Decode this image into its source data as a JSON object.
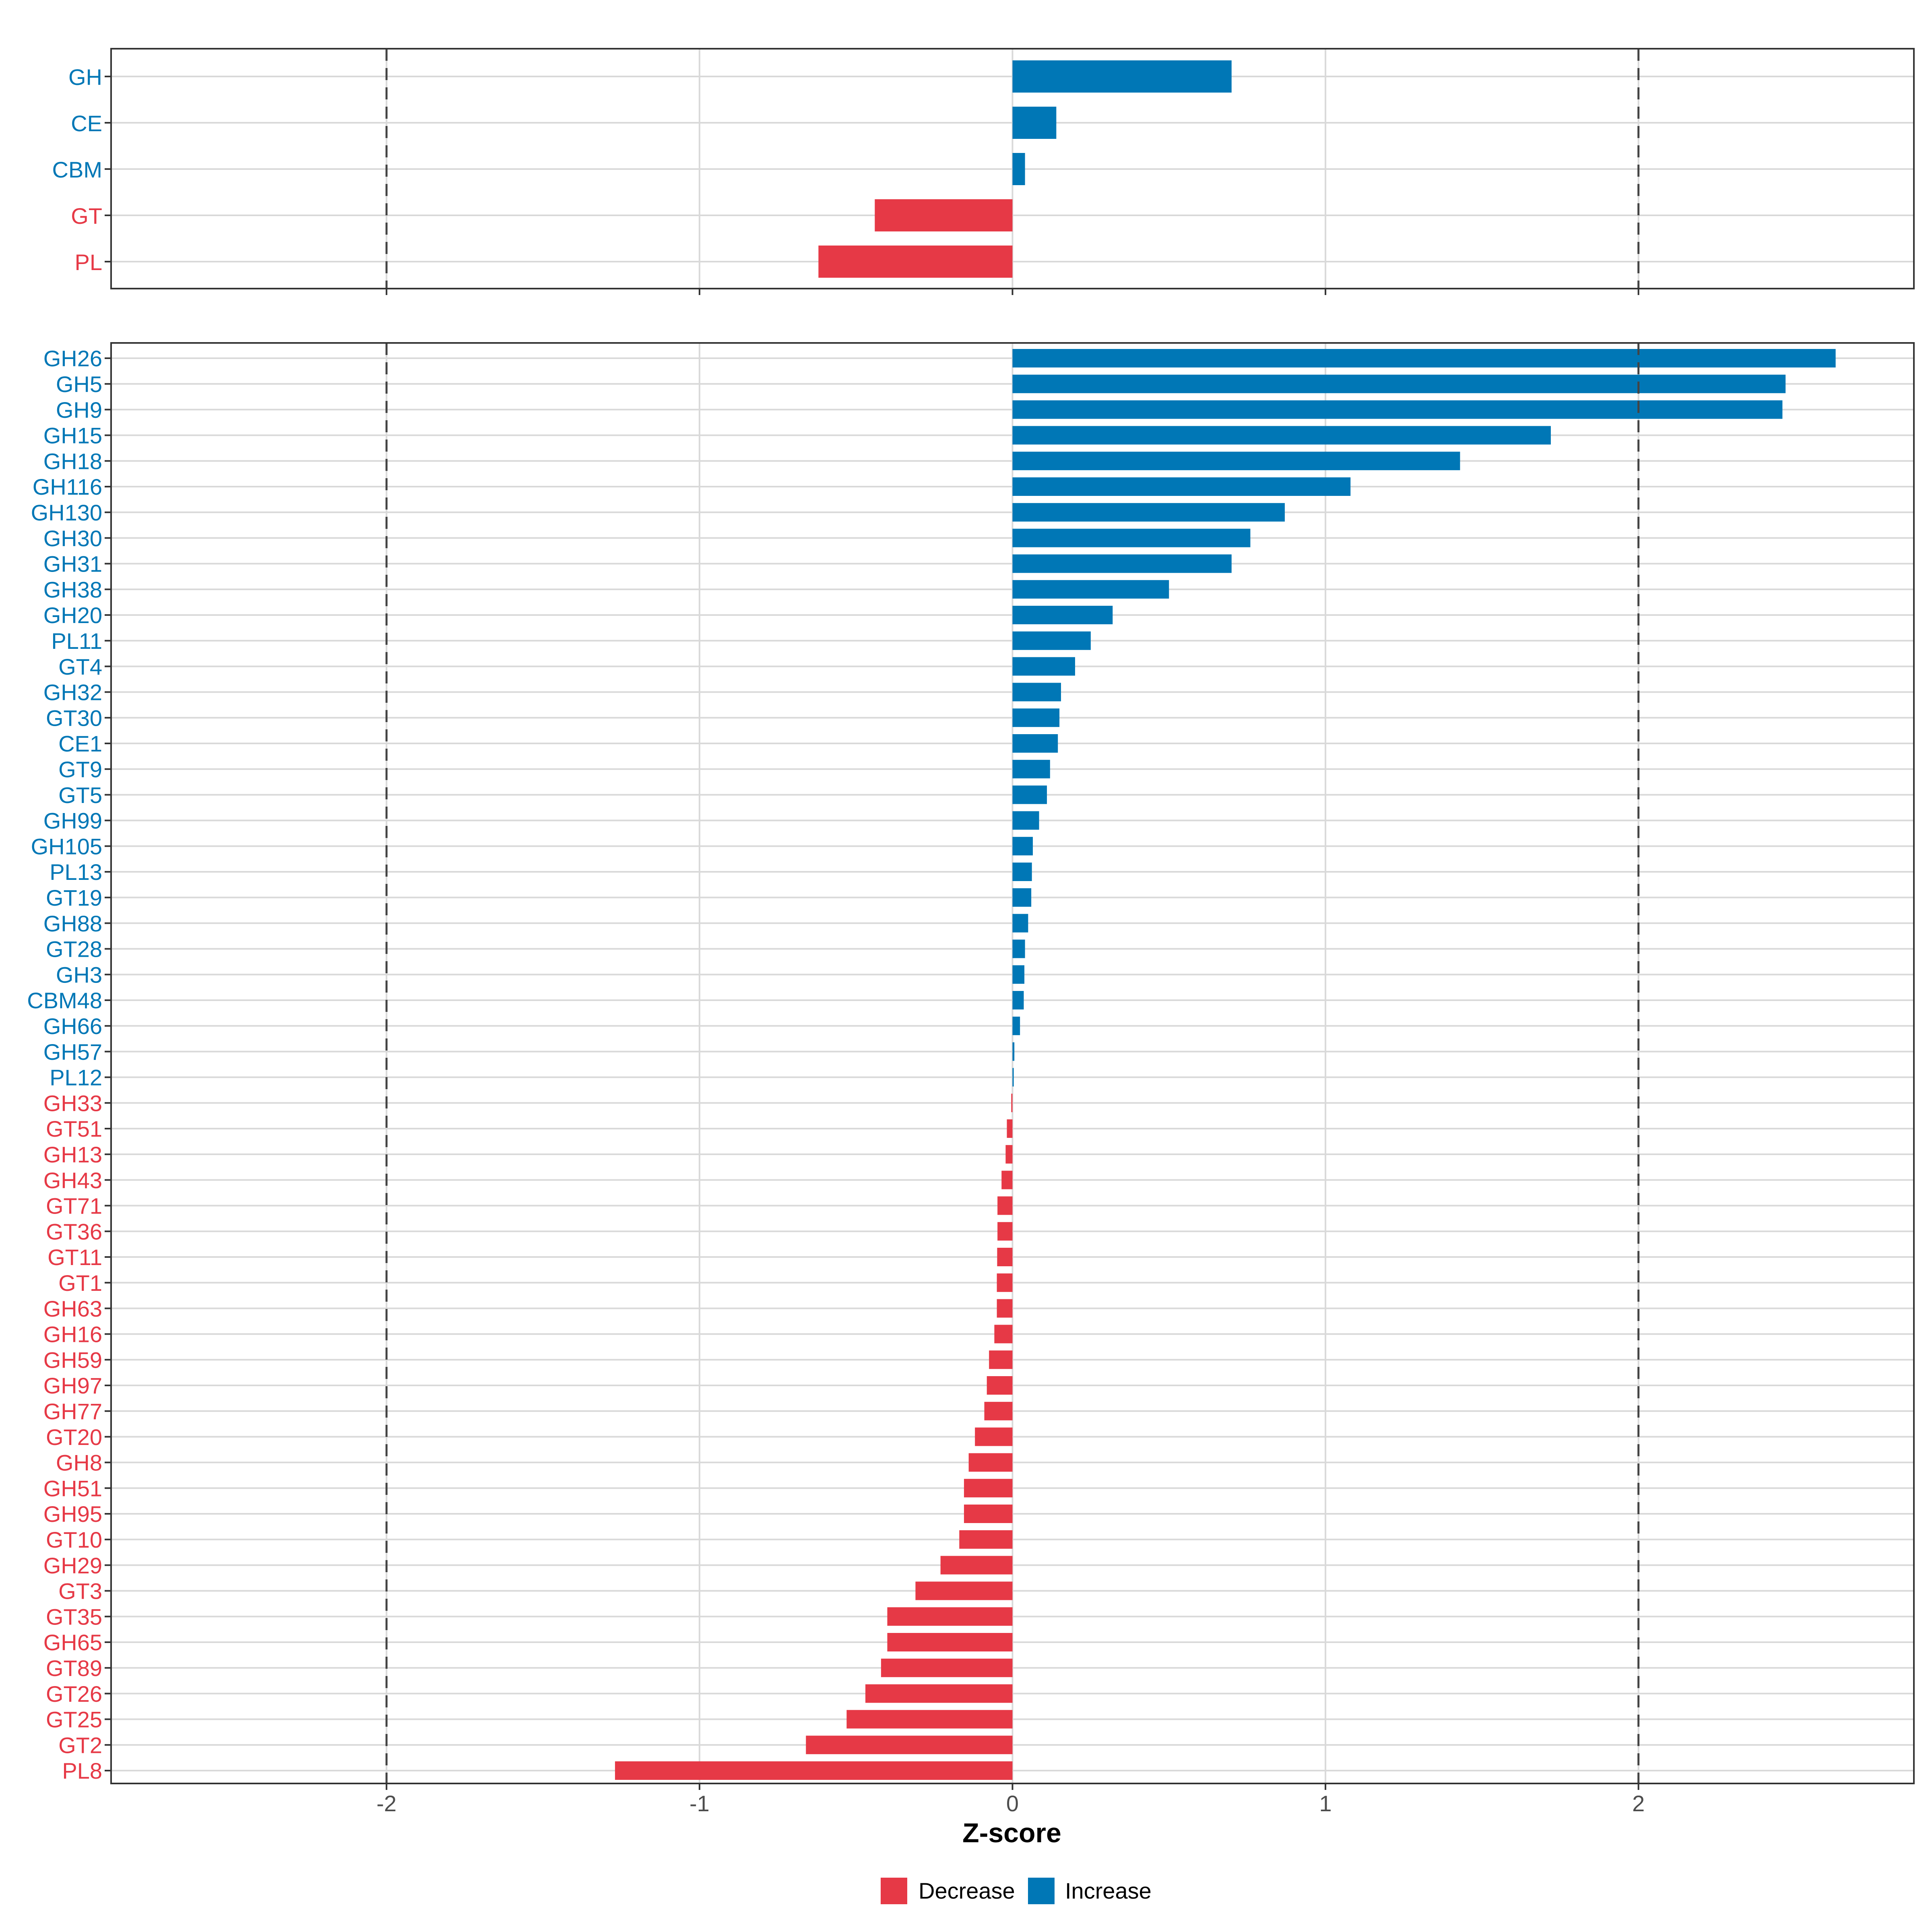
{
  "chart_data": [
    {
      "type": "bar",
      "orientation": "horizontal",
      "panel": "top",
      "categories": [
        "GH",
        "CE",
        "CBM",
        "GT",
        "PL"
      ],
      "values": [
        0.7,
        0.14,
        0.04,
        -0.44,
        -0.62
      ],
      "xlim": [
        -2.88,
        2.88
      ],
      "reference_lines": [
        -2,
        2
      ]
    },
    {
      "type": "bar",
      "orientation": "horizontal",
      "panel": "bottom",
      "categories": [
        "GH26",
        "GH5",
        "GH9",
        "GH15",
        "GH18",
        "GH116",
        "GH130",
        "GH30",
        "GH31",
        "GH38",
        "GH20",
        "PL11",
        "GT4",
        "GH32",
        "GT30",
        "CE1",
        "GT9",
        "GT5",
        "GH99",
        "GH105",
        "PL13",
        "GT19",
        "GH88",
        "GT28",
        "GH3",
        "CBM48",
        "GH66",
        "GH57",
        "PL12",
        "GH33",
        "GT51",
        "GH13",
        "GH43",
        "GT71",
        "GT36",
        "GT11",
        "GT1",
        "GH63",
        "GH16",
        "GH59",
        "GH97",
        "GH77",
        "GT20",
        "GH8",
        "GH51",
        "GH95",
        "GT10",
        "GH29",
        "GT3",
        "GT35",
        "GH65",
        "GT89",
        "GT26",
        "GT25",
        "GT2",
        "PL8"
      ],
      "values": [
        2.63,
        2.47,
        2.46,
        1.72,
        1.43,
        1.08,
        0.87,
        0.76,
        0.7,
        0.5,
        0.32,
        0.25,
        0.2,
        0.155,
        0.15,
        0.145,
        0.12,
        0.11,
        0.085,
        0.065,
        0.062,
        0.06,
        0.05,
        0.04,
        0.038,
        0.036,
        0.024,
        0.006,
        0.004,
        -0.004,
        -0.018,
        -0.022,
        -0.035,
        -0.048,
        -0.048,
        -0.049,
        -0.05,
        -0.05,
        -0.058,
        -0.075,
        -0.082,
        -0.09,
        -0.12,
        -0.14,
        -0.155,
        -0.155,
        -0.17,
        -0.23,
        -0.31,
        -0.4,
        -0.4,
        -0.42,
        -0.47,
        -0.53,
        -0.66,
        -1.27
      ],
      "xlim": [
        -2.88,
        2.88
      ],
      "reference_lines": [
        -2,
        2
      ]
    }
  ],
  "x_ticks": [
    "-2",
    "-1",
    "0",
    "1",
    "2"
  ],
  "x_tick_values": [
    -2,
    -1,
    0,
    1,
    2
  ],
  "xlabel": "Z-score",
  "legend": {
    "position": "bottom",
    "items": [
      {
        "label": "Decrease",
        "color": "#E63946"
      },
      {
        "label": "Increase",
        "color": "#0077B6"
      }
    ]
  },
  "colors": {
    "decrease": "#E63946",
    "increase": "#0077B6",
    "grid": "#D9D9D9",
    "panel_border": "#333333",
    "ref_line": "#444444"
  }
}
